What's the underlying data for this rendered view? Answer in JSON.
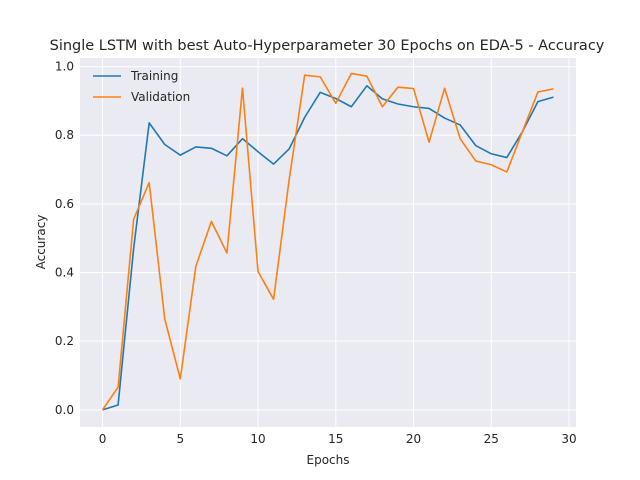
{
  "chart_data": {
    "type": "line",
    "title": "Single LSTM with best Auto-Hyperparameter 30 Epochs on EDA-5 - Accuracy",
    "xlabel": "Epochs",
    "ylabel": "Accuracy",
    "xlim": [
      -1.45,
      30.45
    ],
    "ylim": [
      -0.05,
      1.025
    ],
    "xticks": [
      0,
      5,
      10,
      15,
      20,
      25,
      30
    ],
    "yticks": [
      "0.0",
      "0.2",
      "0.4",
      "0.6",
      "0.8",
      "1.0"
    ],
    "grid": true,
    "legend_position": "top-left",
    "x": [
      0,
      1,
      2,
      3,
      4,
      5,
      6,
      7,
      8,
      9,
      10,
      11,
      12,
      13,
      14,
      15,
      16,
      17,
      18,
      19,
      20,
      21,
      22,
      23,
      24,
      25,
      26,
      27,
      28,
      29
    ],
    "series": [
      {
        "name": "Training",
        "color": "#1f77b4",
        "values": [
          0.0,
          0.014,
          0.47,
          0.836,
          0.773,
          0.742,
          0.766,
          0.762,
          0.74,
          0.79,
          0.752,
          0.716,
          0.76,
          0.852,
          0.925,
          0.907,
          0.883,
          0.944,
          0.906,
          0.891,
          0.883,
          0.878,
          0.85,
          0.83,
          0.77,
          0.746,
          0.735,
          0.81,
          0.898,
          0.911
        ]
      },
      {
        "name": "Validation",
        "color": "#ff7f0e",
        "values": [
          0.0,
          0.066,
          0.555,
          0.662,
          0.265,
          0.09,
          0.418,
          0.549,
          0.457,
          0.937,
          0.403,
          0.322,
          0.67,
          0.975,
          0.97,
          0.893,
          0.98,
          0.972,
          0.883,
          0.94,
          0.936,
          0.78,
          0.937,
          0.79,
          0.725,
          0.714,
          0.693,
          0.81,
          0.926,
          0.935
        ]
      }
    ]
  }
}
